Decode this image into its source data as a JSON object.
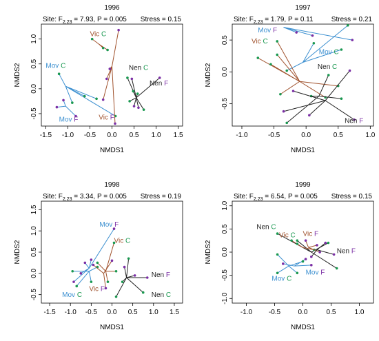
{
  "colors": {
    "Mov": "#3b8fd0",
    "Vic": "#a0522d",
    "Nen": "#222222",
    "C": "#1a9850",
    "F": "#7b2fa5"
  },
  "chart_data": [
    {
      "type": "scatter",
      "title": "1996",
      "subtitle": {
        "prefix": "Site: F",
        "sub": "2,23",
        "rest": " = 7.93, P = 0.005",
        "stress": "Stress = 0.15"
      },
      "xlabel": "NMDS1",
      "ylabel": "NMDS2",
      "xlim": [
        -1.6,
        1.6
      ],
      "ylim": [
        -0.75,
        1.3
      ],
      "xticks": [
        -1.5,
        -1.0,
        -0.5,
        0.0,
        0.5,
        1.0,
        1.5
      ],
      "yticks": [
        -0.5,
        0.0,
        0.5,
        1.0
      ],
      "xtick_labels": [
        "-1.5",
        "-1.0",
        "-0.5",
        "0.0",
        "0.5",
        "1.0",
        "1.5"
      ],
      "ytick_labels": [
        "-0.5",
        "0.0",
        "0.5",
        "1.0"
      ],
      "groups": [
        {
          "site": "Mov",
          "treat": "C",
          "label": {
            "site": "Mov",
            "treat": "C"
          },
          "label_pos": [
            -1.5,
            0.42
          ],
          "centroid": [
            -1.05,
            0.05
          ],
          "points": [
            [
              -1.2,
              0.3
            ],
            [
              -0.9,
              -0.28
            ],
            [
              -0.62,
              -0.15
            ],
            [
              -0.35,
              -0.2
            ],
            [
              0.08,
              -0.55
            ]
          ]
        },
        {
          "site": "Mov",
          "treat": "F",
          "label": {
            "site": "Mov",
            "treat": "F"
          },
          "label_pos": [
            -1.2,
            -0.66
          ],
          "centroid": [
            -1.05,
            -0.35
          ],
          "points": [
            [
              -1.25,
              -0.37
            ],
            [
              -0.82,
              -0.55
            ],
            [
              -1.1,
              -0.23
            ]
          ]
        },
        {
          "site": "Vic",
          "treat": "C",
          "label": {
            "site": "Vic",
            "treat": "C"
          },
          "label_pos": [
            -0.5,
            1.06
          ],
          "centroid": [
            -0.3,
            0.9
          ],
          "points": [
            [
              -0.45,
              1.0
            ],
            [
              -0.1,
              0.78
            ],
            [
              -0.2,
              0.82
            ]
          ]
        },
        {
          "site": "Vic",
          "treat": "F",
          "label": {
            "site": "Vic",
            "treat": "F"
          },
          "label_pos": [
            -0.3,
            -0.62
          ],
          "centroid": [
            0.0,
            0.45
          ],
          "points": [
            [
              0.15,
              1.18
            ],
            [
              -0.12,
              0.2
            ],
            [
              -0.2,
              -0.22
            ],
            [
              0.07,
              -0.7
            ],
            [
              -0.05,
              0.4
            ]
          ]
        },
        {
          "site": "Nen",
          "treat": "C",
          "label": {
            "site": "Nen",
            "treat": "C"
          },
          "label_pos": [
            0.38,
            0.38
          ],
          "centroid": [
            0.55,
            -0.18
          ],
          "points": [
            [
              0.35,
              0.22
            ],
            [
              0.48,
              -0.05
            ],
            [
              0.72,
              -0.42
            ],
            [
              0.58,
              -0.1
            ],
            [
              0.4,
              -0.25
            ]
          ]
        },
        {
          "site": "Nen",
          "treat": "F",
          "label": {
            "site": "Nen",
            "treat": "F"
          },
          "label_pos": [
            0.85,
            0.07
          ],
          "centroid": [
            0.55,
            -0.18
          ],
          "points": [
            [
              1.08,
              0.22
            ],
            [
              0.6,
              -0.38
            ],
            [
              0.45,
              0.2
            ],
            [
              0.5,
              -0.35
            ]
          ]
        }
      ]
    },
    {
      "type": "scatter",
      "title": "1997",
      "subtitle": {
        "prefix": "Site: F",
        "sub": "2,23",
        "rest": " = 1.79, P = 0.11",
        "stress": "Stress = 0.21"
      },
      "xlabel": "NMDS1",
      "ylabel": "NMDS2",
      "xlim": [
        -1.15,
        1.05
      ],
      "ylim": [
        -0.85,
        0.75
      ],
      "xticks": [
        -1.0,
        -0.5,
        0.0,
        0.5,
        1.0
      ],
      "yticks": [
        -0.5,
        0.0,
        0.5
      ],
      "xtick_labels": [
        "-1.0",
        "-0.5",
        "0.0",
        "0.5",
        "1.0"
      ],
      "ytick_labels": [
        "-0.5",
        "0.0",
        "0.5"
      ],
      "groups": [
        {
          "site": "Mov",
          "treat": "F",
          "label": {
            "site": "Mov",
            "treat": "F"
          },
          "label_pos": [
            -0.75,
            0.62
          ],
          "centroid": [
            -0.35,
            0.7
          ],
          "points": [
            [
              0.72,
              0.5
            ],
            [
              0.1,
              0.57
            ],
            [
              -0.15,
              0.62
            ]
          ]
        },
        {
          "site": "Mov",
          "treat": "C",
          "label": {
            "site": "Mov",
            "treat": "C"
          },
          "label_pos": [
            0.2,
            0.28
          ],
          "centroid": [
            -0.05,
            0.15
          ],
          "points": [
            [
              -0.3,
              0.02
            ],
            [
              0.65,
              0.73
            ],
            [
              0.55,
              0.35
            ],
            [
              0.12,
              0.45
            ]
          ]
        },
        {
          "site": "Vic",
          "treat": "C",
          "label": {
            "site": "Vic",
            "treat": "C"
          },
          "label_pos": [
            -0.85,
            0.45
          ],
          "centroid": [
            -0.1,
            -0.15
          ],
          "points": [
            [
              -0.45,
              0.48
            ],
            [
              -0.75,
              0.22
            ],
            [
              -0.45,
              0.27
            ],
            [
              -0.55,
              0.12
            ],
            [
              -0.4,
              -0.35
            ],
            [
              0.3,
              -0.4
            ],
            [
              0.5,
              -0.22
            ]
          ]
        },
        {
          "site": "Nen",
          "treat": "C",
          "label": {
            "site": "Nen",
            "treat": "C"
          },
          "label_pos": [
            0.18,
            0.05
          ],
          "centroid": [
            0.2,
            -0.38
          ],
          "points": [
            [
              -0.3,
              -0.8
            ],
            [
              0.35,
              -0.05
            ],
            [
              0.08,
              -0.38
            ],
            [
              0.55,
              -0.42
            ]
          ]
        },
        {
          "site": "Nen",
          "treat": "F",
          "label": {
            "site": "Nen",
            "treat": "F"
          },
          "label_pos": [
            0.6,
            -0.8
          ],
          "centroid": [
            0.3,
            -0.45
          ],
          "points": [
            [
              -0.35,
              -0.62
            ],
            [
              0.75,
              -0.75
            ],
            [
              0.05,
              -0.68
            ],
            [
              0.68,
              0.02
            ],
            [
              -0.2,
              -0.3
            ]
          ]
        }
      ]
    },
    {
      "type": "scatter",
      "title": "1998",
      "subtitle": {
        "prefix": "Site: F",
        "sub": "2,23",
        "rest": " = 3.34, P = 0.005",
        "stress": "Stress = 0.19"
      },
      "xlabel": "NMDS1",
      "ylabel": "NMDS2",
      "xlim": [
        -1.7,
        1.7
      ],
      "ylim": [
        -0.7,
        1.7
      ],
      "xticks": [
        -1.5,
        -1.0,
        -0.5,
        0.0,
        0.5,
        1.0,
        1.5
      ],
      "yticks": [
        -0.5,
        0.0,
        0.5,
        1.0,
        1.5
      ],
      "xtick_labels": [
        "-1.5",
        "-1.0",
        "-0.5",
        "0.0",
        "0.5",
        "1.0",
        "1.5"
      ],
      "ytick_labels": [
        "-0.5",
        "0.0",
        "0.5",
        "1.0",
        "1.5"
      ],
      "groups": [
        {
          "site": "Mov",
          "treat": "F",
          "label": {
            "site": "Mov",
            "treat": "F"
          },
          "label_pos": [
            -0.3,
            1.1
          ],
          "centroid": [
            -0.55,
            0.12
          ],
          "points": [
            [
              0.05,
              1.05
            ],
            [
              -0.92,
              -0.2
            ],
            [
              -0.75,
              0.0
            ],
            [
              -0.5,
              0.32
            ],
            [
              -0.65,
              0.25
            ]
          ]
        },
        {
          "site": "Mov",
          "treat": "C",
          "label": {
            "site": "Mov",
            "treat": "C"
          },
          "label_pos": [
            -1.2,
            -0.55
          ],
          "centroid": [
            -0.55,
            0.05
          ],
          "points": [
            [
              -0.85,
              -0.3
            ],
            [
              -0.5,
              -0.2
            ],
            [
              -0.95,
              0.05
            ],
            [
              -0.35,
              0.15
            ]
          ]
        },
        {
          "site": "Vic",
          "treat": "C",
          "label": {
            "site": "Vic",
            "treat": "C"
          },
          "label_pos": [
            0.05,
            0.72
          ],
          "centroid": [
            -0.15,
            0.05
          ],
          "points": [
            [
              0.05,
              0.72
            ],
            [
              -0.35,
              0.25
            ],
            [
              -0.1,
              -0.2
            ],
            [
              0.1,
              0.05
            ]
          ]
        },
        {
          "site": "Vic",
          "treat": "F",
          "label": {
            "site": "Vic",
            "treat": "F"
          },
          "label_pos": [
            -0.55,
            -0.42
          ],
          "centroid": [
            -0.2,
            0.0
          ],
          "points": [
            [
              -0.15,
              -0.35
            ],
            [
              -0.45,
              0.2
            ],
            [
              0.0,
              0.3
            ]
          ]
        },
        {
          "site": "Nen",
          "treat": "F",
          "label": {
            "site": "Nen",
            "treat": "F"
          },
          "label_pos": [
            0.95,
            -0.08
          ],
          "centroid": [
            0.35,
            -0.1
          ],
          "points": [
            [
              0.85,
              -0.1
            ],
            [
              0.3,
              0.15
            ],
            [
              0.55,
              -0.05
            ]
          ]
        },
        {
          "site": "Nen",
          "treat": "C",
          "label": {
            "site": "Nen",
            "treat": "C"
          },
          "label_pos": [
            0.95,
            -0.55
          ],
          "centroid": [
            0.35,
            -0.1
          ],
          "points": [
            [
              0.75,
              -0.45
            ],
            [
              0.1,
              -0.55
            ],
            [
              0.4,
              0.35
            ],
            [
              0.25,
              -0.2
            ]
          ]
        }
      ]
    },
    {
      "type": "scatter",
      "title": "1999",
      "subtitle": {
        "prefix": "Site: F",
        "sub": "2,23",
        "rest": " = 6.54, P = 0.005",
        "stress": "Stress = 0.15"
      },
      "xlabel": "NMDS1",
      "ylabel": "NMDS2",
      "xlim": [
        -1.25,
        1.25
      ],
      "ylim": [
        -1.1,
        1.1
      ],
      "xticks": [
        -1.0,
        -0.5,
        0.0,
        0.5,
        1.0
      ],
      "yticks": [
        -1.0,
        -0.5,
        0.0,
        0.5,
        1.0
      ],
      "xtick_labels": [
        "-1.0",
        "-0.5",
        "0.0",
        "0.5",
        "1.0"
      ],
      "ytick_labels": [
        "-1.0",
        "-0.5",
        "0.0",
        "0.5",
        "1.0"
      ],
      "groups": [
        {
          "site": "Nen",
          "treat": "C",
          "label": {
            "site": "Nen",
            "treat": "C"
          },
          "label_pos": [
            -0.82,
            0.5
          ],
          "centroid": [
            0.15,
            0.0
          ],
          "points": [
            [
              -0.45,
              0.4
            ],
            [
              0.6,
              -0.35
            ],
            [
              0.45,
              0.2
            ],
            [
              -0.1,
              0.25
            ]
          ]
        },
        {
          "site": "Vic",
          "treat": "C",
          "label": {
            "site": "Vic",
            "treat": "C"
          },
          "label_pos": [
            -0.42,
            0.32
          ],
          "centroid": [
            0.0,
            0.1
          ],
          "points": [
            [
              -0.2,
              0.25
            ],
            [
              0.2,
              0.05
            ],
            [
              -0.1,
              0.18
            ]
          ]
        },
        {
          "site": "Vic",
          "treat": "F",
          "label": {
            "site": "Vic",
            "treat": "F"
          },
          "label_pos": [
            0.0,
            0.35
          ],
          "centroid": [
            0.1,
            0.1
          ],
          "points": [
            [
              0.25,
              0.15
            ],
            [
              0.05,
              0.25
            ],
            [
              0.3,
              0.0
            ]
          ]
        },
        {
          "site": "Nen",
          "treat": "F",
          "label": {
            "site": "Nen",
            "treat": "F"
          },
          "label_pos": [
            0.6,
            -0.02
          ],
          "centroid": [
            0.25,
            0.05
          ],
          "points": [
            [
              0.55,
              -0.05
            ],
            [
              0.4,
              0.2
            ],
            [
              0.15,
              -0.1
            ]
          ]
        },
        {
          "site": "Mov",
          "treat": "F",
          "label": {
            "site": "Mov",
            "treat": "F"
          },
          "label_pos": [
            0.05,
            -0.48
          ],
          "centroid": [
            -0.15,
            -0.3
          ],
          "points": [
            [
              0.05,
              -0.15
            ],
            [
              -0.35,
              -0.25
            ],
            [
              0.15,
              -0.28
            ]
          ]
        },
        {
          "site": "Mov",
          "treat": "C",
          "label": {
            "site": "Mov",
            "treat": "C"
          },
          "label_pos": [
            -0.55,
            -0.62
          ],
          "centroid": [
            -0.25,
            -0.3
          ],
          "points": [
            [
              -0.45,
              -0.45
            ],
            [
              -0.1,
              -0.45
            ],
            [
              -0.45,
              -0.05
            ],
            [
              0.0,
              -0.2
            ]
          ]
        }
      ]
    }
  ]
}
